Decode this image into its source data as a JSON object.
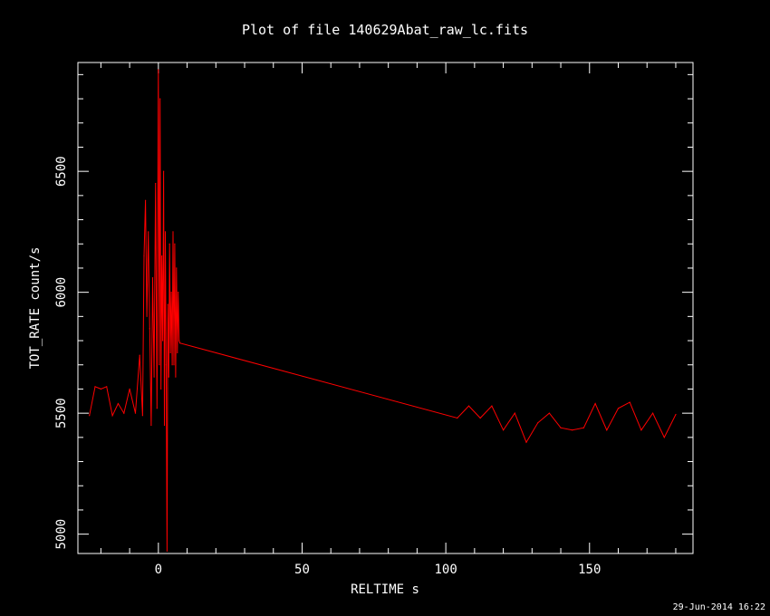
{
  "window": {
    "timestamp": "29-Jun-2014 16:22"
  },
  "colors": {
    "background": "#000000",
    "axes": "#ffffff",
    "series": "#ff0000"
  },
  "chart_data": {
    "type": "line",
    "title": "Plot of file 140629Abat_raw_lc.fits",
    "xlabel": "RELTIME  s",
    "ylabel": "TOT_RATE  count/s",
    "xlim": [
      -28,
      186
    ],
    "ylim": [
      4920,
      6950
    ],
    "xticks": [
      0,
      50,
      100,
      150
    ],
    "yticks": [
      5000,
      5500,
      6000,
      6500
    ],
    "xtick_labels": [
      "0",
      "50",
      "100",
      "150"
    ],
    "ytick_labels": [
      "5000",
      "5500",
      "6000",
      "6500"
    ],
    "grid": false,
    "series": [
      {
        "color": "#ff0000",
        "x": [
          -24,
          -22,
          -20,
          -18,
          -16,
          -14,
          -12,
          -10,
          -8,
          -6.5,
          -5.5,
          -5,
          -4.5,
          -4,
          -3.5,
          -3,
          -2.5,
          -2,
          -1.5,
          -1,
          -0.5,
          0,
          0.3,
          0.6,
          0.9,
          1.2,
          1.5,
          1.8,
          2.1,
          2.4,
          2.7,
          3,
          3.3,
          3.6,
          3.9,
          4.2,
          4.5,
          4.8,
          5.1,
          5.4,
          5.7,
          6,
          6.3,
          6.6,
          6.9,
          7.2,
          7.5,
          104,
          108,
          112,
          116,
          120,
          124,
          128,
          132,
          136,
          140,
          144,
          148,
          152,
          156,
          160,
          164,
          168,
          172,
          176,
          180
        ],
        "y": [
          5490,
          5610,
          5600,
          5610,
          5490,
          5540,
          5500,
          5600,
          5500,
          5740,
          5490,
          6150,
          6380,
          5900,
          6250,
          5850,
          5450,
          6060,
          5650,
          6450,
          5520,
          6920,
          5700,
          6800,
          5600,
          6150,
          5800,
          6500,
          5450,
          6250,
          5700,
          4930,
          5950,
          5650,
          6200,
          5750,
          6000,
          5700,
          6250,
          5700,
          6200,
          5650,
          6100,
          5750,
          6000,
          5800,
          5790,
          5480,
          5530,
          5480,
          5530,
          5430,
          5500,
          5380,
          5460,
          5500,
          5440,
          5430,
          5440,
          5540,
          5430,
          5520,
          5545,
          5430,
          5500,
          5400,
          5495
        ]
      }
    ]
  }
}
